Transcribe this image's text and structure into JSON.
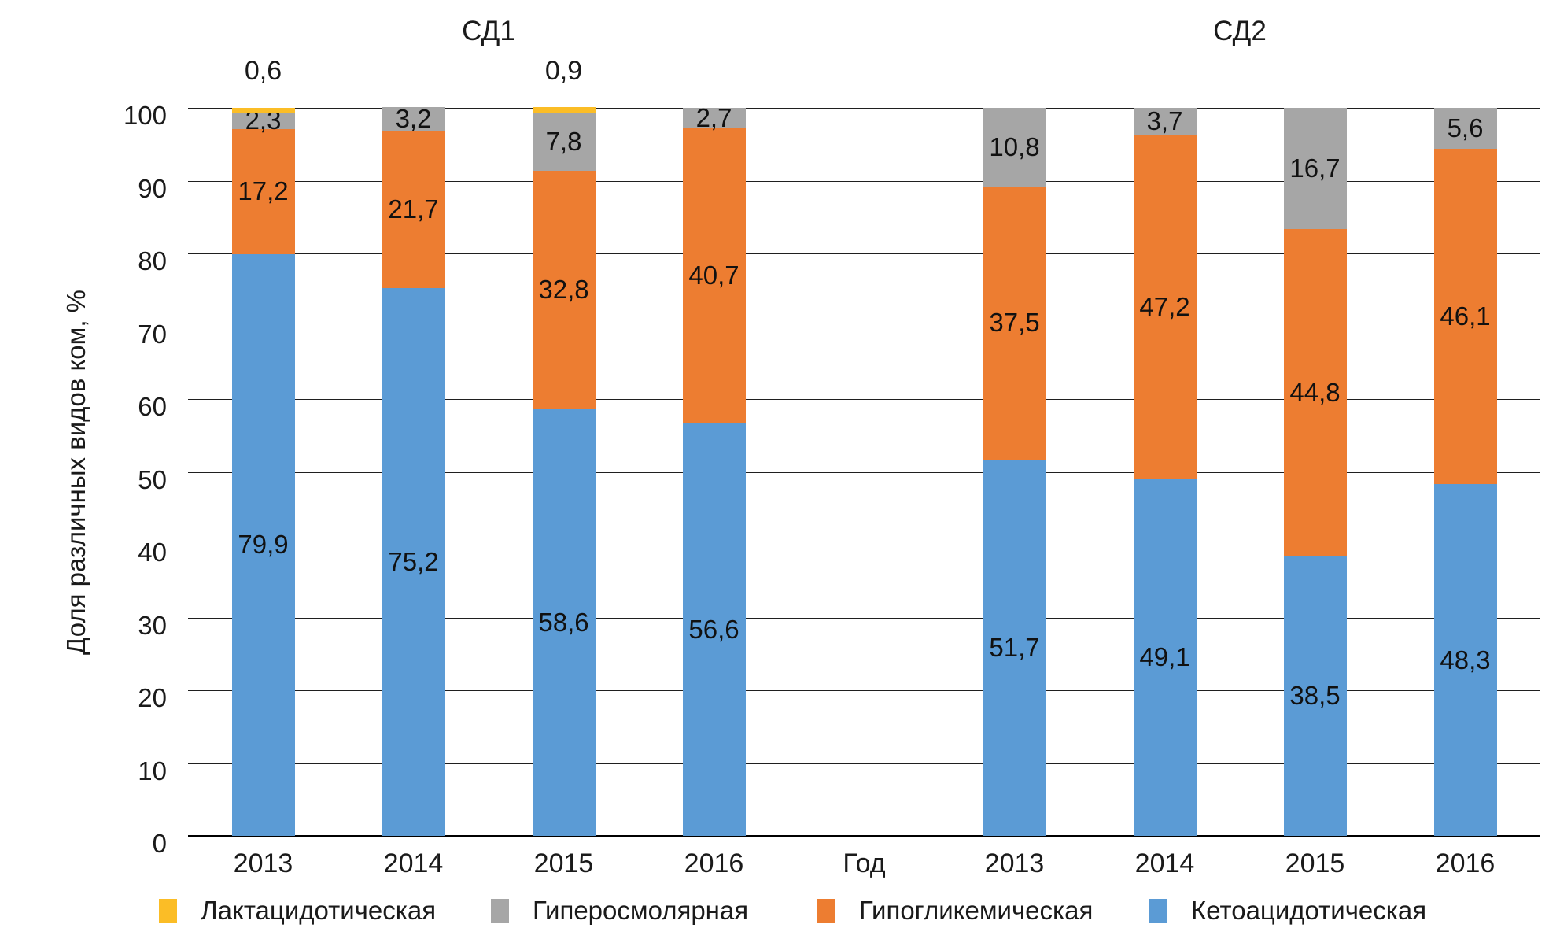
{
  "chart_data": {
    "type": "bar",
    "stacked": true,
    "units": "percent",
    "ylabel": "Доля различных видов ком, %",
    "xlabel": "Год",
    "ylim": [
      0,
      100
    ],
    "yticks": [
      0,
      10,
      20,
      30,
      40,
      50,
      60,
      70,
      80,
      90,
      100
    ],
    "grid": "horizontal",
    "legend_position": "bottom",
    "legend": [
      {
        "label": "Лактацидотическая",
        "color": "#FBBD26"
      },
      {
        "label": "Гиперосмолярная",
        "color": "#A6A6A6"
      },
      {
        "label": "Гипогликемическая",
        "color": "#ED7D31"
      },
      {
        "label": "Кетоацидотическая",
        "color": "#5B9BD5"
      }
    ],
    "groups": [
      {
        "title": "СД1",
        "bars": [
          {
            "category": "2013",
            "segments": [
              {
                "series": "Кетоацидотическая",
                "value": 79.9,
                "label": "79,9"
              },
              {
                "series": "Гипогликемическая",
                "value": 17.2,
                "label": "17,2"
              },
              {
                "series": "Гиперосмолярная",
                "value": 2.3,
                "label": "2,3"
              },
              {
                "series": "Лактацидотическая",
                "value": 0.6,
                "label": "0,6",
                "label_above": true
              }
            ]
          },
          {
            "category": "2014",
            "segments": [
              {
                "series": "Кетоацидотическая",
                "value": 75.2,
                "label": "75,2"
              },
              {
                "series": "Гипогликемическая",
                "value": 21.7,
                "label": "21,7"
              },
              {
                "series": "Гиперосмолярная",
                "value": 3.2,
                "label": "3,2"
              }
            ]
          },
          {
            "category": "2015",
            "segments": [
              {
                "series": "Кетоацидотическая",
                "value": 58.6,
                "label": "58,6"
              },
              {
                "series": "Гипогликемическая",
                "value": 32.8,
                "label": "32,8"
              },
              {
                "series": "Гиперосмолярная",
                "value": 7.8,
                "label": "7,8"
              },
              {
                "series": "Лактацидотическая",
                "value": 0.9,
                "label": "0,9",
                "label_above": true
              }
            ]
          },
          {
            "category": "2016",
            "segments": [
              {
                "series": "Кетоацидотическая",
                "value": 56.6,
                "label": "56,6"
              },
              {
                "series": "Гипогликемическая",
                "value": 40.7,
                "label": "40,7"
              },
              {
                "series": "Гиперосмолярная",
                "value": 2.7,
                "label": "2,7"
              }
            ]
          }
        ]
      },
      {
        "title": "СД2",
        "bars": [
          {
            "category": "2013",
            "segments": [
              {
                "series": "Кетоацидотическая",
                "value": 51.7,
                "label": "51,7"
              },
              {
                "series": "Гипогликемическая",
                "value": 37.5,
                "label": "37,5"
              },
              {
                "series": "Гиперосмолярная",
                "value": 10.8,
                "label": "10,8"
              }
            ]
          },
          {
            "category": "2014",
            "segments": [
              {
                "series": "Кетоацидотическая",
                "value": 49.1,
                "label": "49,1"
              },
              {
                "series": "Гипогликемическая",
                "value": 47.2,
                "label": "47,2"
              },
              {
                "series": "Гиперосмолярная",
                "value": 3.7,
                "label": "3,7"
              }
            ]
          },
          {
            "category": "2015",
            "segments": [
              {
                "series": "Кетоацидотическая",
                "value": 38.5,
                "label": "38,5"
              },
              {
                "series": "Гипогликемическая",
                "value": 44.8,
                "label": "44,8"
              },
              {
                "series": "Гиперосмолярная",
                "value": 16.7,
                "label": "16,7"
              }
            ]
          },
          {
            "category": "2016",
            "segments": [
              {
                "series": "Кетоацидотическая",
                "value": 48.3,
                "label": "48,3"
              },
              {
                "series": "Гипогликемическая",
                "value": 46.1,
                "label": "46,1"
              },
              {
                "series": "Гиперосмолярная",
                "value": 5.6,
                "label": "5,6"
              }
            ]
          }
        ]
      }
    ]
  }
}
